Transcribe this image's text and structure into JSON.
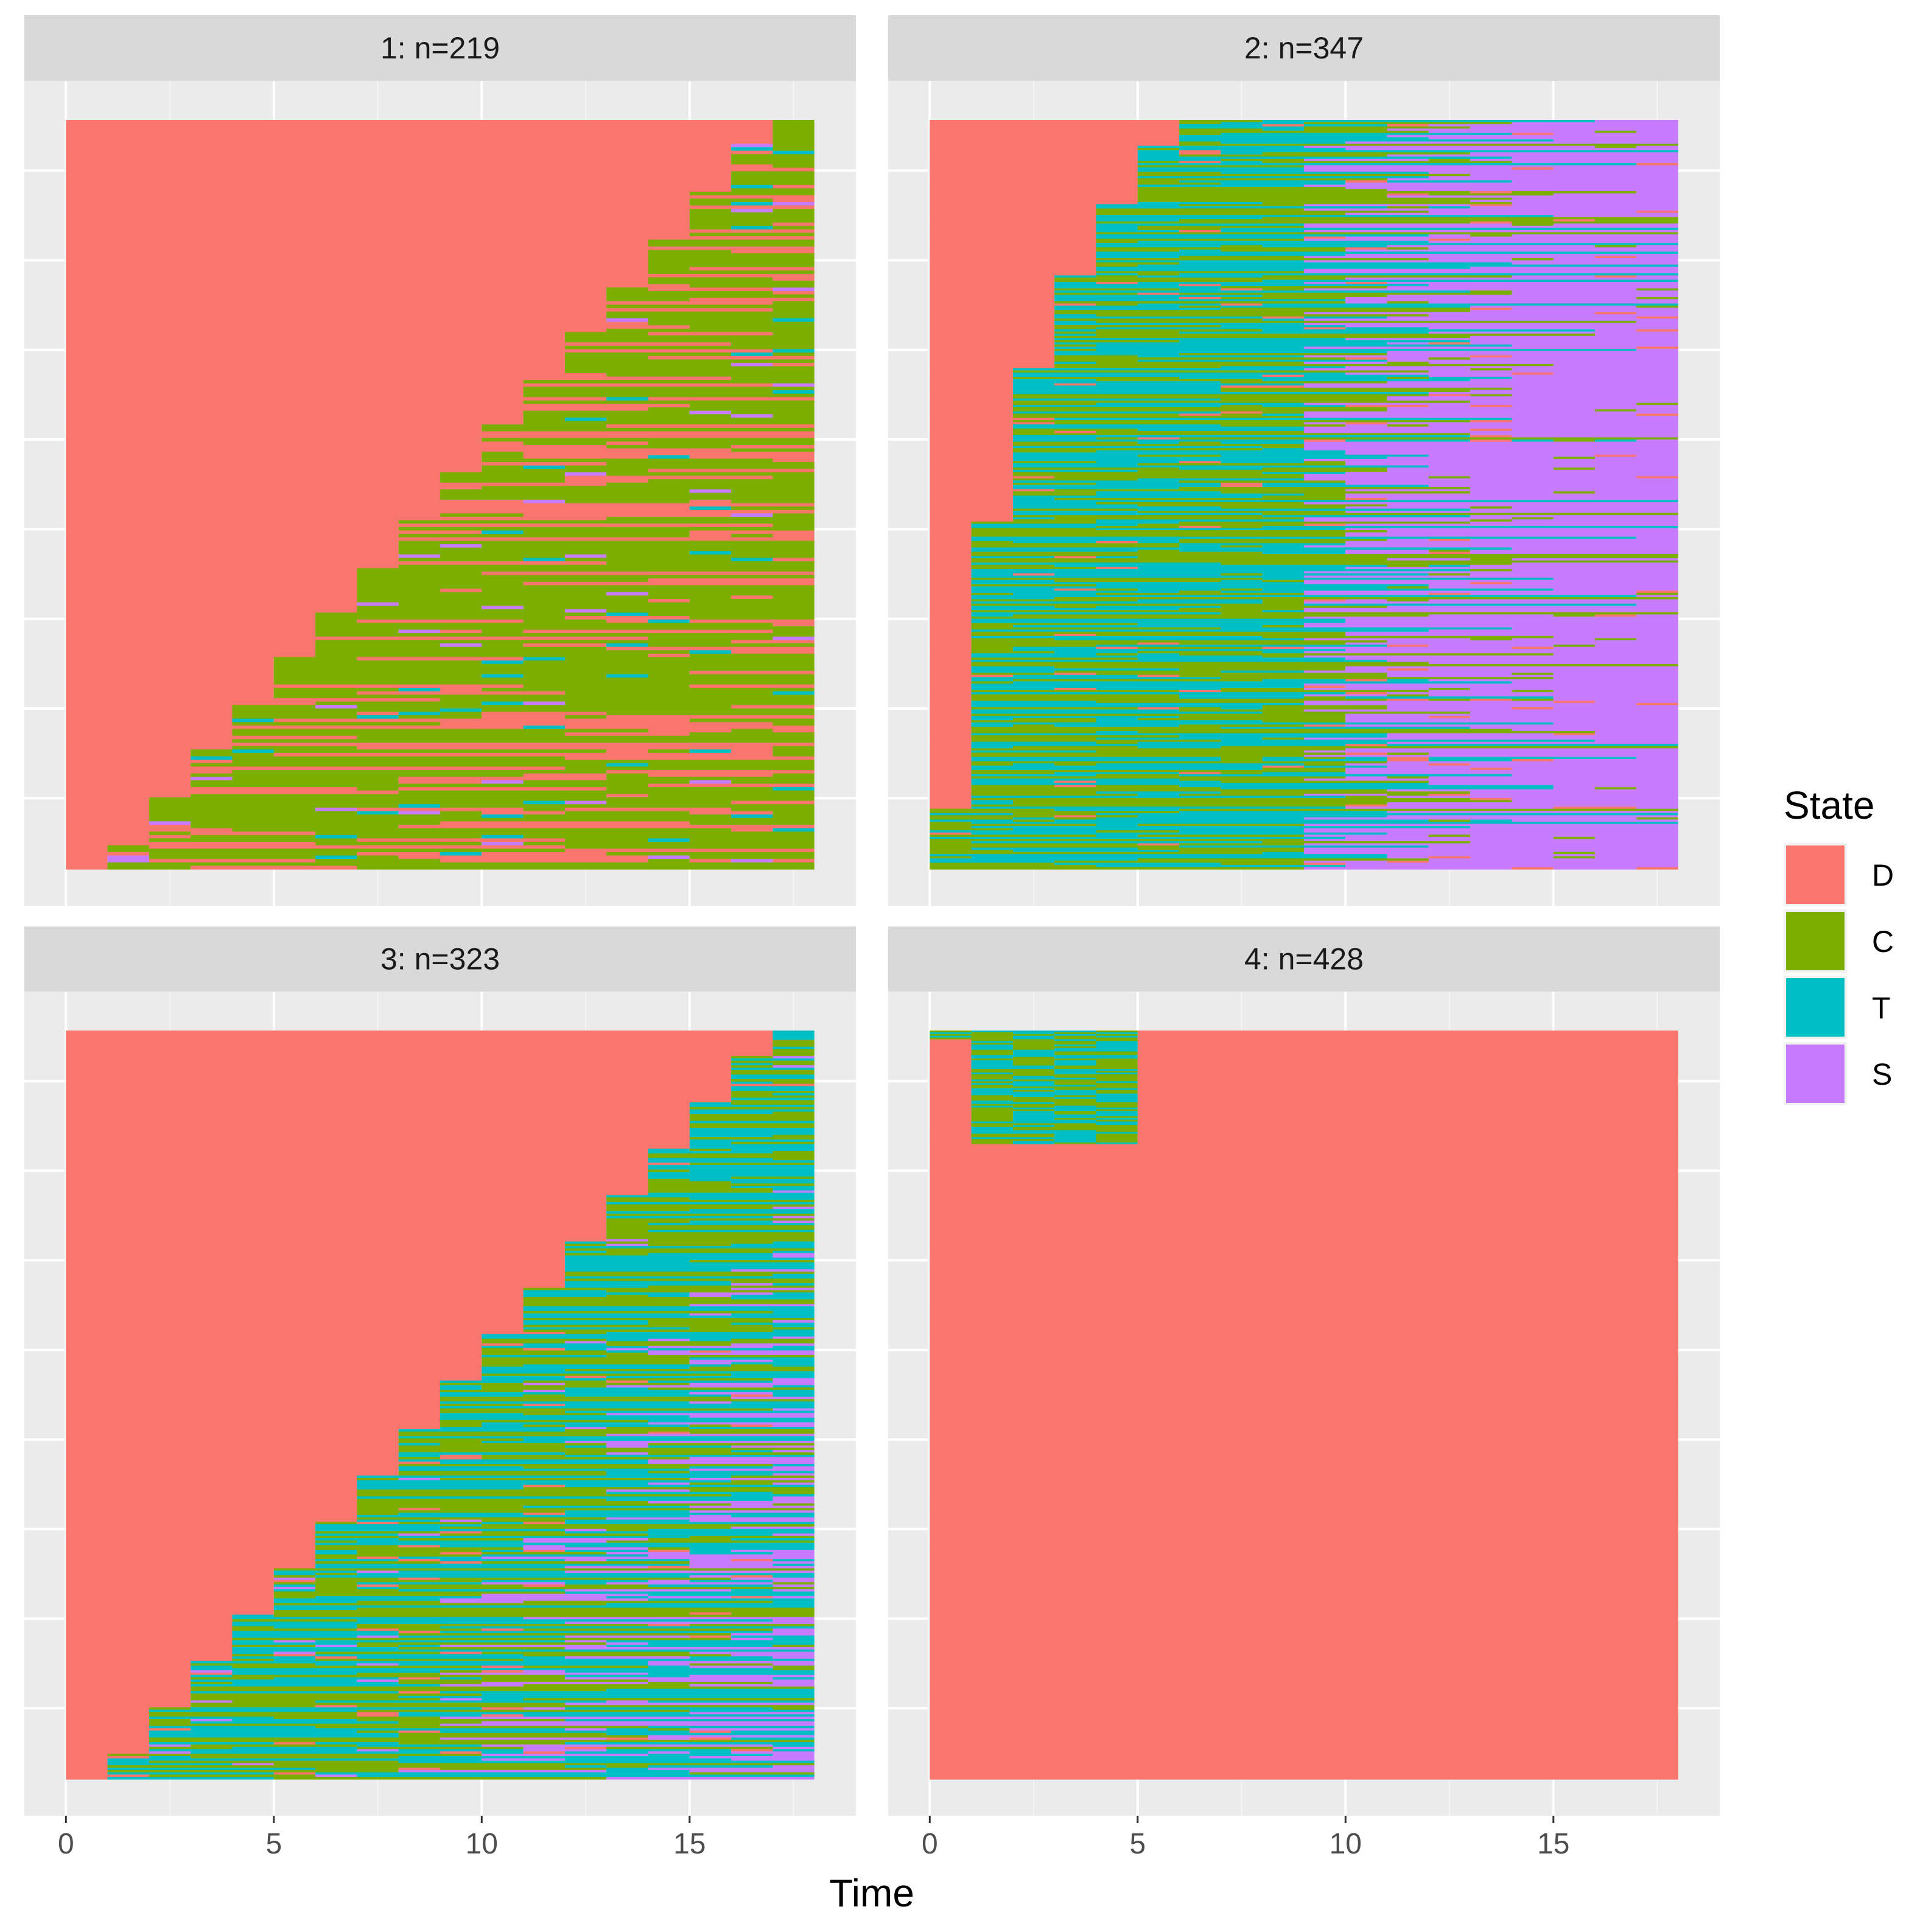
{
  "chart_data": {
    "type": "state-sequence-index-plot",
    "xlabel": "Time",
    "xlim": [
      -1,
      19
    ],
    "x_ticks": [
      0,
      5,
      10,
      15
    ],
    "time_steps": 18,
    "colors": {
      "D": "#F8766D",
      "C": "#7CAE00",
      "T": "#00BFC4",
      "S": "#C77CFF"
    },
    "legend": {
      "title": "State",
      "entries": [
        "D",
        "C",
        "T",
        "S"
      ],
      "position": "right"
    },
    "panels": [
      {
        "id": 1,
        "label": "1: n=219",
        "n": 219,
        "pattern": "staircase",
        "after_states": [
          "C",
          "D"
        ],
        "after_weights": [
          0.72,
          0.28
        ],
        "minor_states": [
          "T",
          "S"
        ],
        "late_states": [
          "C",
          "D"
        ],
        "late_weights": [
          0.7,
          0.3
        ]
      },
      {
        "id": 2,
        "label": "2: n=347",
        "n": 347,
        "pattern": "early_exit",
        "after_states": [
          "C",
          "T"
        ],
        "after_weights": [
          0.5,
          0.5
        ],
        "minor_states": [
          "C",
          "D"
        ],
        "late_states": [
          "S"
        ],
        "late_weights": [
          1.0
        ]
      },
      {
        "id": 3,
        "label": "3: n=323",
        "n": 323,
        "pattern": "staircase",
        "after_states": [
          "C",
          "T"
        ],
        "after_weights": [
          0.5,
          0.5
        ],
        "minor_states": [
          "D",
          "S"
        ],
        "late_states": [
          "T",
          "S",
          "C"
        ],
        "late_weights": [
          0.45,
          0.35,
          0.2
        ]
      },
      {
        "id": 4,
        "label": "4: n=428",
        "n": 428,
        "pattern": "mostly_d",
        "after_states": [
          "D"
        ],
        "after_weights": [
          1.0
        ],
        "minor_states": [
          "C",
          "T"
        ],
        "late_states": [
          "D"
        ],
        "late_weights": [
          1.0
        ]
      }
    ]
  }
}
